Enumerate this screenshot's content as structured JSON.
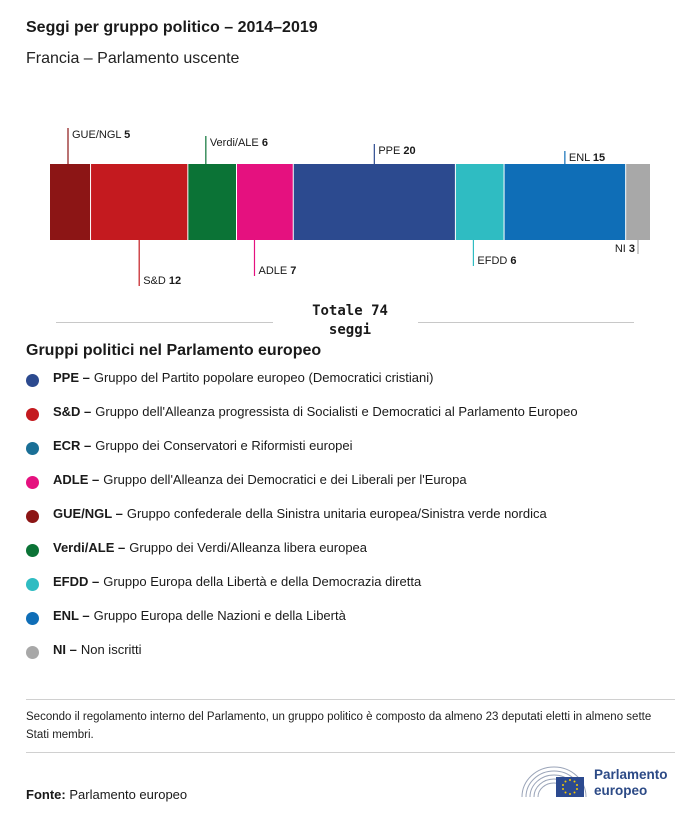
{
  "header": {
    "title": "Seggi per gruppo politico – 2014–2019",
    "subtitle": "Francia – Parlamento uscente"
  },
  "chart_data": {
    "type": "bar",
    "orientation": "horizontal-stacked",
    "categories": [
      "GUE/NGL",
      "S&D",
      "Verdi/ALE",
      "ADLE",
      "PPE",
      "EFDD",
      "ENL",
      "NI"
    ],
    "values": [
      5,
      12,
      6,
      7,
      20,
      6,
      15,
      3
    ],
    "colors": [
      "#8c1515",
      "#c41a1f",
      "#0b7336",
      "#e5117f",
      "#2c4a8f",
      "#2fbcc2",
      "#0f6eb7",
      "#a8a8a8"
    ],
    "label_positions": [
      "top",
      "bottom",
      "top",
      "bottom",
      "top",
      "bottom",
      "top",
      "bottom"
    ],
    "total_text": "Totale 74 seggi"
  },
  "legend": {
    "title": "Gruppi politici nel Parlamento europeo",
    "items": [
      {
        "abbr": "PPE –",
        "desc": "Gruppo del Partito popolare europeo (Democratici cristiani)",
        "color": "#2c4a8f"
      },
      {
        "abbr": "S&D –",
        "desc": "Gruppo dell'Alleanza progressista di Socialisti e Democratici al Parlamento Europeo",
        "color": "#c41a1f"
      },
      {
        "abbr": "ECR –",
        "desc": "Gruppo dei Conservatori e Riformisti europei",
        "color": "#1a6f96"
      },
      {
        "abbr": "ADLE –",
        "desc": "Gruppo dell'Alleanza dei Democratici e dei Liberali per l'Europa",
        "color": "#e5117f"
      },
      {
        "abbr": "GUE/NGL –",
        "desc": "Gruppo confederale della Sinistra unitaria europea/Sinistra verde nordica",
        "color": "#8c1515"
      },
      {
        "abbr": "Verdi/ALE –",
        "desc": "Gruppo dei Verdi/Alleanza libera europea",
        "color": "#0b7336"
      },
      {
        "abbr": "EFDD –",
        "desc": "Gruppo Europa della Libertà e della Democrazia diretta",
        "color": "#2fbcc2"
      },
      {
        "abbr": "ENL –",
        "desc": "Gruppo Europa delle Nazioni e della Libertà",
        "color": "#0f6eb7"
      },
      {
        "abbr": "NI –",
        "desc": "Non iscritti",
        "color": "#a8a8a8"
      }
    ]
  },
  "note": "Secondo il regolamento interno del Parlamento, un gruppo politico è composto da almeno 23 deputati eletti in almeno sette Stati membri.",
  "source": {
    "label": "Fonte:",
    "text": "Parlamento europeo"
  },
  "logo": {
    "line1": "Parlamento",
    "line2": "europeo",
    "icon": "european-parliament-logo"
  }
}
